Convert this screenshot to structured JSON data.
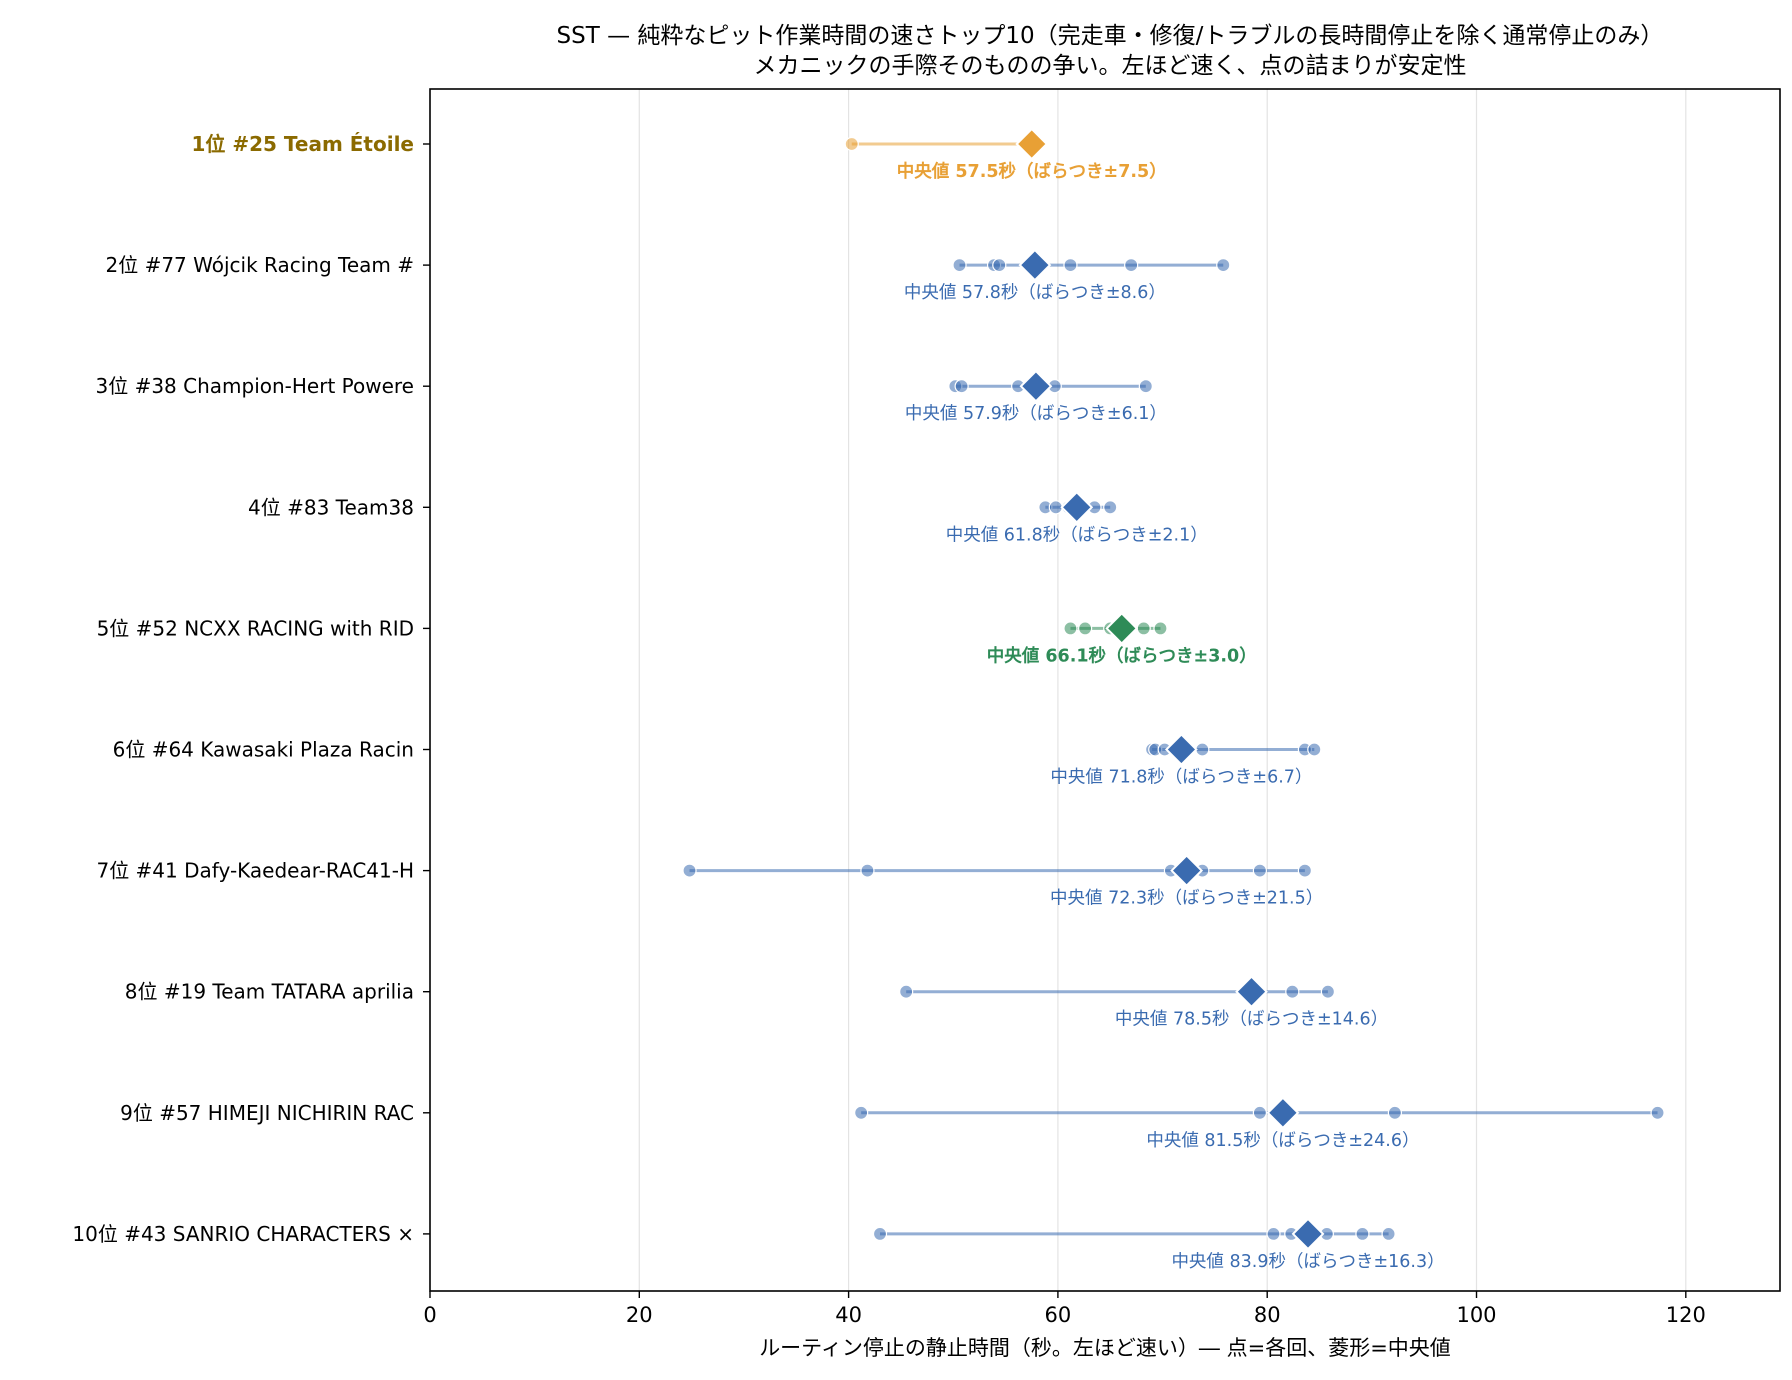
{
  "chart_data": {
    "type": "scatter",
    "title": "SST — 純粋なピット作業時間の速さトップ10（完走車・修復/トラブルの長時間停止を除く通常停止のみ）",
    "subtitle": "メカニックの手際そのものの争い。左ほど速く、点の詰まりが安定性",
    "xlabel": "ルーティン停止の静止時間（秒。左ほど速い）― 点=各回、菱形=中央値",
    "xlim": [
      0,
      129
    ],
    "x_ticks": [
      "0",
      "20",
      "40",
      "60",
      "80",
      "100",
      "120"
    ],
    "grid": "x",
    "colors": {
      "default": "#3a6bb0",
      "first": "#e8a035",
      "highlight": "#2e8b57",
      "first_label": "#8b6a00"
    },
    "rows": [
      {
        "label": "1位  #25 Team Étoile",
        "median": 57.5,
        "median_label": "中央値 57.5秒（ばらつき±7.5）",
        "points": [
          40.3,
          57.5
        ],
        "style": "first"
      },
      {
        "label": "2位  #77 Wójcik Racing Team #",
        "median": 57.8,
        "median_label": "中央値 57.8秒（ばらつき±8.6）",
        "points": [
          50.6,
          53.9,
          54.4,
          57.8,
          61.2,
          67.0,
          75.8
        ],
        "style": "default"
      },
      {
        "label": "3位  #38 Champion-Hert Powere",
        "median": 57.9,
        "median_label": "中央値 57.9秒（ばらつき±6.1）",
        "points": [
          50.2,
          50.8,
          56.2,
          57.9,
          59.7,
          68.4
        ],
        "style": "default"
      },
      {
        "label": "4位  #83 Team38",
        "median": 61.8,
        "median_label": "中央値 61.8秒（ばらつき±2.1）",
        "points": [
          58.8,
          59.8,
          61.0,
          61.8,
          63.5,
          65.0
        ],
        "style": "default"
      },
      {
        "label": "5位  #52 NCXX RACING with RID",
        "median": 66.1,
        "median_label": "中央値 66.1秒（ばらつき±3.0）",
        "points": [
          61.2,
          62.6,
          65.0,
          66.1,
          68.2,
          69.8
        ],
        "style": "highlight"
      },
      {
        "label": "6位  #64 Kawasaki Plaza Racin",
        "median": 71.8,
        "median_label": "中央値 71.8秒（ばらつき±6.7）",
        "points": [
          69.0,
          69.3,
          70.2,
          71.8,
          73.8,
          83.6,
          84.5
        ],
        "style": "default"
      },
      {
        "label": "7位  #41 Dafy-Kaedear-RAC41-H",
        "median": 72.3,
        "median_label": "中央値 72.3秒（ばらつき±21.5）",
        "points": [
          24.8,
          41.8,
          70.8,
          72.3,
          73.8,
          79.3,
          83.6
        ],
        "style": "default"
      },
      {
        "label": "8位  #19 Team TATARA aprilia",
        "median": 78.5,
        "median_label": "中央値 78.5秒（ばらつき±14.6）",
        "points": [
          45.5,
          78.5,
          82.4,
          85.8
        ],
        "style": "default"
      },
      {
        "label": "9位  #57 HIMEJI NICHIRIN  RAC",
        "median": 81.5,
        "median_label": "中央値 81.5秒（ばらつき±24.6）",
        "points": [
          41.2,
          79.3,
          81.5,
          92.2,
          117.3
        ],
        "style": "default"
      },
      {
        "label": "10位  #43 SANRIO CHARACTERS ×",
        "median": 83.9,
        "median_label": "中央値 83.9秒（ばらつき±16.3）",
        "points": [
          43.0,
          80.6,
          82.3,
          83.9,
          85.7,
          89.1,
          91.6
        ],
        "style": "default"
      }
    ]
  }
}
